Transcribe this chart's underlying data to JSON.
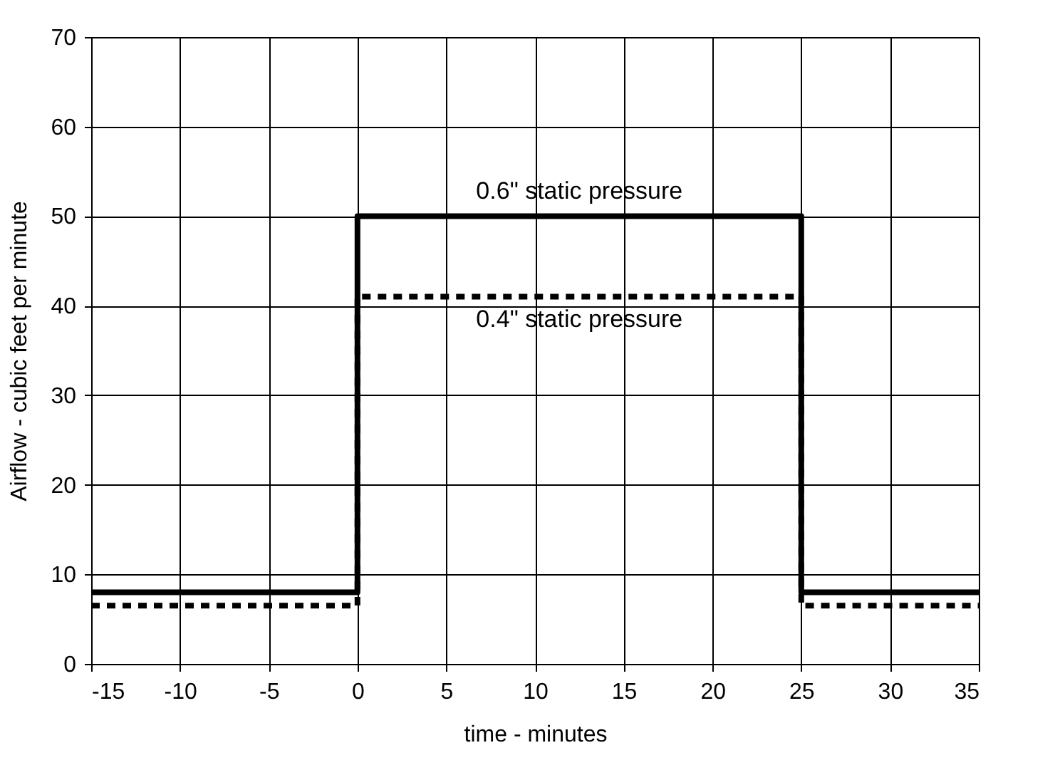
{
  "chart_data": {
    "type": "line",
    "xlabel": "time - minutes",
    "ylabel": "Airflow - cubic feet per minute",
    "xlim": [
      -15,
      35
    ],
    "xticks": [
      -15,
      -10,
      -5,
      0,
      5,
      10,
      15,
      20,
      25,
      30,
      35
    ],
    "ylim": [
      0,
      70
    ],
    "yticks": [
      0,
      10,
      20,
      30,
      40,
      50,
      60,
      70
    ],
    "grid": true,
    "marker": "none",
    "series": [
      {
        "name": "0.6\" static pressure",
        "color": "#000000",
        "line_style": "solid",
        "x": [
          -15,
          0,
          0,
          25,
          25,
          35
        ],
        "values": [
          8,
          8,
          50,
          50,
          8,
          8
        ]
      },
      {
        "name": "0.4\" static pressure",
        "color": "#000000",
        "line_style": "dashed",
        "x": [
          -15,
          0,
          0,
          25,
          25,
          35
        ],
        "values": [
          6.5,
          6.5,
          41,
          41,
          6.5,
          6.5
        ]
      }
    ]
  }
}
